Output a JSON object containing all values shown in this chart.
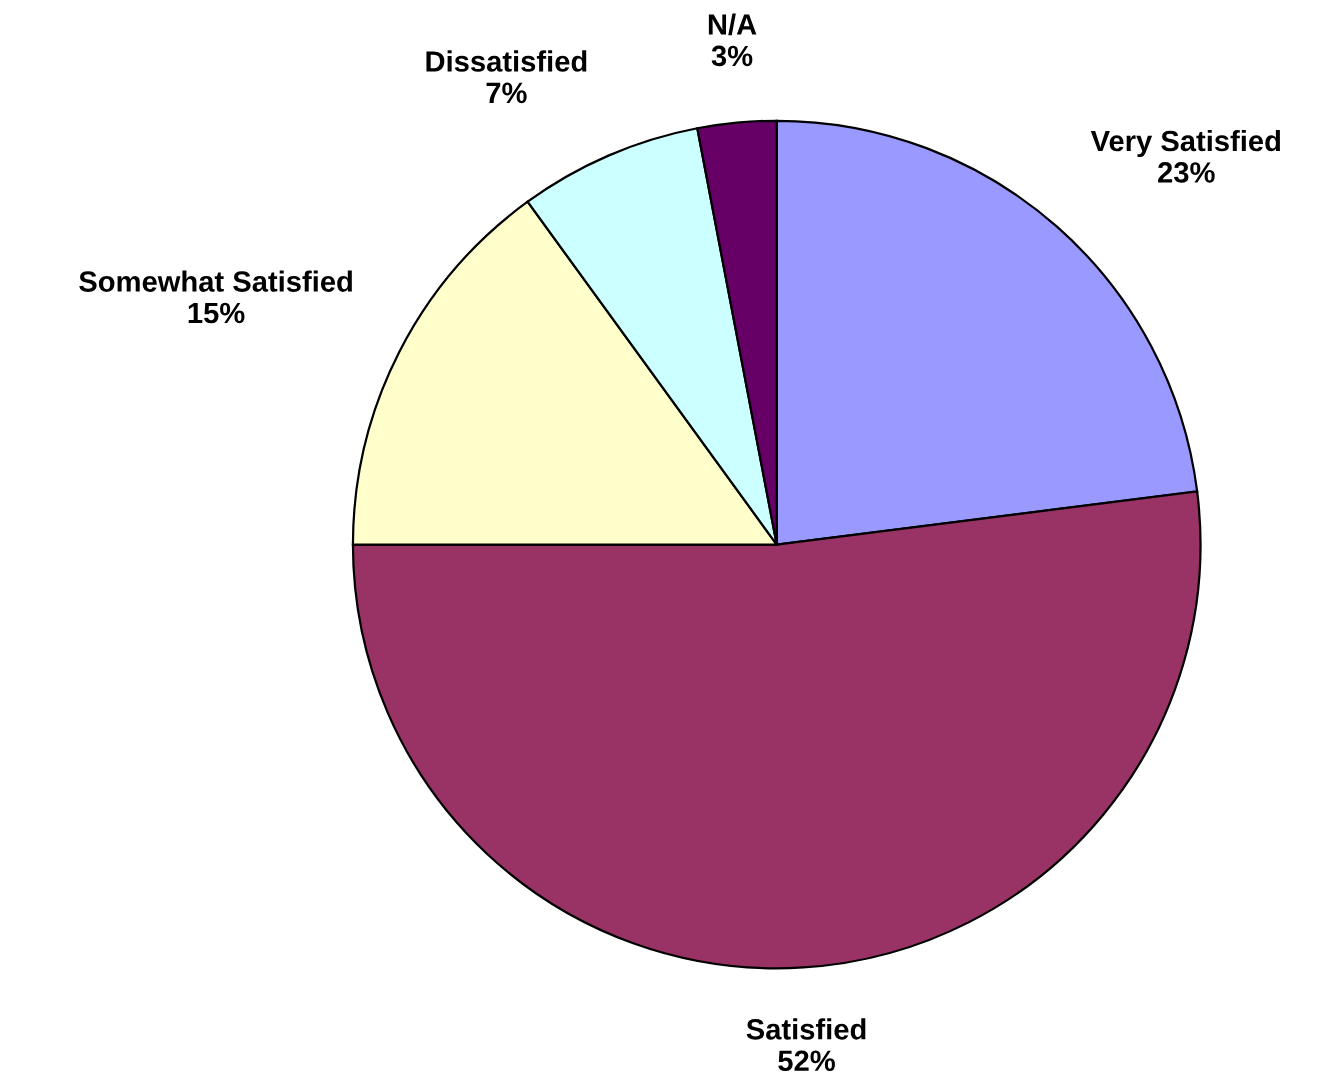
{
  "chart_data": {
    "type": "pie",
    "categories": [
      "Very Satisfied",
      "Satisfied",
      "Somewhat Satisfied",
      "Dissatisfied",
      "N/A"
    ],
    "values": [
      23,
      52,
      15,
      7,
      3
    ],
    "value_labels": [
      "23%",
      "52%",
      "15%",
      "7%",
      "3%"
    ],
    "colors": [
      "#9999ff",
      "#993366",
      "#ffffcc",
      "#ccffff",
      "#660066"
    ]
  }
}
